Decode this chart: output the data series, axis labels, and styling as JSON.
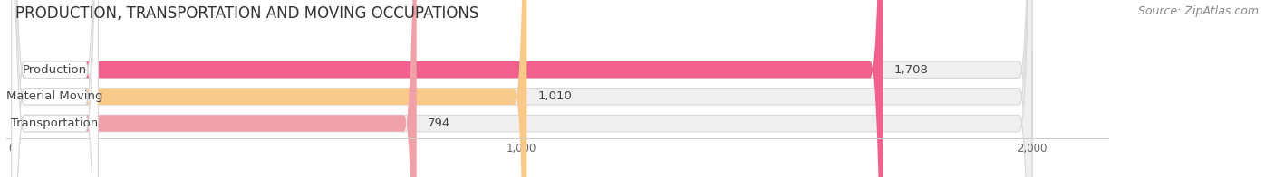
{
  "title": "PRODUCTION, TRANSPORTATION AND MOVING OCCUPATIONS",
  "source": "Source: ZipAtlas.com",
  "categories": [
    "Production",
    "Material Moving",
    "Transportation"
  ],
  "values": [
    1708,
    1010,
    794
  ],
  "bar_colors": [
    "#f2608e",
    "#f9c98a",
    "#f0a0a8"
  ],
  "bar_bg_color": "#efefef",
  "xlim": [
    0,
    2000
  ],
  "xticks": [
    0,
    1000,
    2000
  ],
  "figure_bg": "#ffffff",
  "title_fontsize": 12,
  "bar_label_fontsize": 9.5,
  "category_fontsize": 9.5,
  "source_fontsize": 9
}
